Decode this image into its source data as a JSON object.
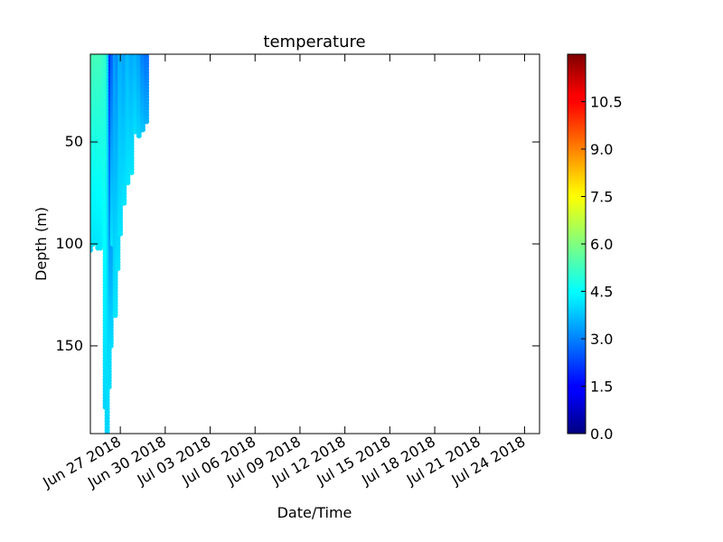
{
  "chart_data": {
    "type": "scatter",
    "title": "temperature",
    "xlabel": "Date/Time",
    "ylabel": "Depth (m)",
    "x_axis": {
      "scale": "date",
      "range": [
        "2018-06-25",
        "2018-07-25"
      ],
      "ticks": [
        "2018-06-27",
        "2018-06-30",
        "2018-07-03",
        "2018-07-06",
        "2018-07-09",
        "2018-07-12",
        "2018-07-15",
        "2018-07-18",
        "2018-07-21",
        "2018-07-24"
      ],
      "tick_labels": [
        "Jun 27 2018",
        "Jun 30 2018",
        "Jul 03 2018",
        "Jul 06 2018",
        "Jul 09 2018",
        "Jul 12 2018",
        "Jul 15 2018",
        "Jul 18 2018",
        "Jul 21 2018",
        "Jul 24 2018"
      ]
    },
    "y_axis": {
      "inverted": true,
      "range": [
        7,
        193
      ],
      "ticks": [
        50,
        100,
        150
      ],
      "tick_labels": [
        "50",
        "100",
        "150"
      ]
    },
    "colorbar": {
      "colormap": "jet",
      "range": [
        0,
        12
      ],
      "ticks": [
        0,
        1.5,
        3,
        4.5,
        6,
        7.5,
        9,
        10.5
      ],
      "tick_labels": [
        "0.0",
        "1.5",
        "3.0",
        "4.5",
        "6.0",
        "7.5",
        "9.0",
        "10.5"
      ]
    },
    "grid": false,
    "profiles": [
      {
        "time": "2018-06-25T00:00",
        "depth_top": 7,
        "depth_bottom": 103,
        "temp_top": 5.4,
        "temp_bottom": 4.1
      },
      {
        "time": "2018-06-25T04:00",
        "depth_top": 7,
        "depth_bottom": 100,
        "temp_top": 5.4,
        "temp_bottom": 4.2
      },
      {
        "time": "2018-06-25T08:00",
        "depth_top": 7,
        "depth_bottom": 97,
        "temp_top": 5.3,
        "temp_bottom": 4.2
      },
      {
        "time": "2018-06-25T12:00",
        "depth_top": 7,
        "depth_bottom": 102,
        "temp_top": 5.3,
        "temp_bottom": 4.2
      },
      {
        "time": "2018-06-25T16:00",
        "depth_top": 7,
        "depth_bottom": 102,
        "temp_top": 5.3,
        "temp_bottom": 4.2
      },
      {
        "time": "2018-06-25T20:00",
        "depth_top": 7,
        "depth_bottom": 101,
        "temp_top": 5.2,
        "temp_bottom": 4.3
      },
      {
        "time": "2018-06-26T00:00",
        "depth_top": 7,
        "depth_bottom": 180,
        "temp_top": 5.1,
        "temp_bottom": 4.0
      },
      {
        "time": "2018-06-26T03:00",
        "depth_top": 7,
        "depth_bottom": 193,
        "temp_top": 5.0,
        "temp_bottom": 4.0
      },
      {
        "time": "2018-06-26T06:00",
        "depth_top": 7,
        "depth_bottom": 170,
        "temp_top": 4.0,
        "temp_bottom": 4.1
      },
      {
        "time": "2018-06-26T09:00",
        "depth_top": 7,
        "depth_bottom": 150,
        "temp_top": 2.0,
        "temp_bottom": 4.1
      },
      {
        "time": "2018-06-26T12:00",
        "depth_top": 7,
        "depth_bottom": 100,
        "temp_top": 2.6,
        "temp_bottom": 4.2
      },
      {
        "time": "2018-06-26T16:00",
        "depth_top": 7,
        "depth_bottom": 135,
        "temp_top": 3.3,
        "temp_bottom": 4.2
      },
      {
        "time": "2018-06-26T20:00",
        "depth_top": 7,
        "depth_bottom": 112,
        "temp_top": 3.1,
        "temp_bottom": 4.2
      },
      {
        "time": "2018-06-27T00:00",
        "depth_top": 7,
        "depth_bottom": 95,
        "temp_top": 3.6,
        "temp_bottom": 4.2
      },
      {
        "time": "2018-06-27T06:00",
        "depth_top": 7,
        "depth_bottom": 80,
        "temp_top": 3.4,
        "temp_bottom": 4.2
      },
      {
        "time": "2018-06-27T12:00",
        "depth_top": 7,
        "depth_bottom": 70,
        "temp_top": 3.7,
        "temp_bottom": 4.2
      },
      {
        "time": "2018-06-27T18:00",
        "depth_top": 7,
        "depth_bottom": 65,
        "temp_top": 3.5,
        "temp_bottom": 4.2
      },
      {
        "time": "2018-06-28T00:00",
        "depth_top": 7,
        "depth_bottom": 45,
        "temp_top": 3.6,
        "temp_bottom": 4.1
      },
      {
        "time": "2018-06-28T06:00",
        "depth_top": 7,
        "depth_bottom": 47,
        "temp_top": 3.4,
        "temp_bottom": 4.0
      },
      {
        "time": "2018-06-28T12:00",
        "depth_top": 7,
        "depth_bottom": 44,
        "temp_top": 3.0,
        "temp_bottom": 3.8
      },
      {
        "time": "2018-06-28T18:00",
        "depth_top": 7,
        "depth_bottom": 40,
        "temp_top": 2.8,
        "temp_bottom": 3.6
      }
    ]
  }
}
